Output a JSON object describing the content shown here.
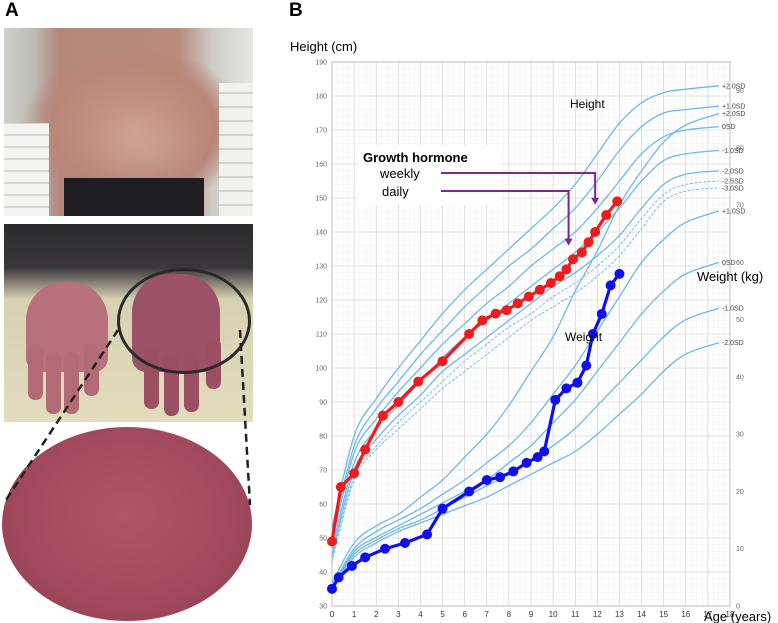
{
  "panel_a": {
    "letter": "A",
    "photos": [
      "abdomen-photo",
      "hands-photo",
      "hand-skin-closeup-photo"
    ]
  },
  "panel_b": {
    "letter": "B"
  },
  "colors": {
    "reference_curve": "#6fb8e6",
    "height_series": "#ee1c1c",
    "weight_series": "#1010ee",
    "gh_arrows": "#7b2a8c",
    "grid": "#d9d9d9"
  },
  "chart_data": {
    "type": "line",
    "x_label": "Age (years)",
    "x_ticks": [
      0,
      1,
      2,
      3,
      4,
      5,
      6,
      7,
      8,
      9,
      10,
      11,
      12,
      13,
      14,
      15,
      16,
      17,
      18
    ],
    "xlim": [
      0,
      18
    ],
    "height_axis": {
      "label": "Height (cm)",
      "ylim": [
        30,
        190
      ],
      "ticks": [
        30,
        40,
        50,
        60,
        70,
        80,
        90,
        100,
        110,
        120,
        130,
        140,
        150,
        160,
        170,
        180,
        190
      ]
    },
    "weight_axis": {
      "label": "Weight (kg)",
      "ylim": [
        0,
        95
      ],
      "ticks": [
        0,
        10,
        20,
        30,
        40,
        50,
        60,
        70,
        80,
        90
      ]
    },
    "height_curve_title": "Height",
    "weight_curve_title": "Weight",
    "height_reference": [
      {
        "name": "+2.0SD",
        "dashed": false,
        "x": [
          0,
          1,
          2,
          3,
          4,
          5,
          6,
          7,
          8,
          9,
          10,
          11,
          12,
          13,
          14,
          15,
          16,
          17.5
        ],
        "y": [
          53,
          80,
          91,
          100,
          108,
          116,
          123,
          129,
          135,
          141,
          147,
          154,
          163,
          172,
          178,
          181,
          182,
          183
        ]
      },
      {
        "name": "+1.0SD",
        "dashed": false,
        "x": [
          0,
          1,
          2,
          3,
          4,
          5,
          6,
          7,
          8,
          9,
          10,
          11,
          12,
          13,
          14,
          15,
          16,
          17.5
        ],
        "y": [
          51,
          77,
          88,
          96,
          104,
          111,
          118,
          124,
          130,
          135,
          141,
          147,
          155,
          164,
          171,
          175,
          176,
          177
        ]
      },
      {
        "name": "0SD",
        "dashed": false,
        "x": [
          0,
          1,
          2,
          3,
          4,
          5,
          6,
          7,
          8,
          9,
          10,
          11,
          12,
          13,
          14,
          15,
          16,
          17.5
        ],
        "y": [
          49,
          75,
          85,
          93,
          100,
          107,
          113,
          119,
          124,
          130,
          135,
          140,
          147,
          155,
          163,
          168,
          170,
          171
        ]
      },
      {
        "name": "-1.0SD",
        "dashed": false,
        "x": [
          0,
          1,
          2,
          3,
          4,
          5,
          6,
          7,
          8,
          9,
          10,
          11,
          12,
          13,
          14,
          15,
          16,
          17.5
        ],
        "y": [
          47,
          72,
          82,
          89,
          96,
          103,
          109,
          114,
          119,
          124,
          129,
          134,
          140,
          147,
          155,
          161,
          163,
          164
        ]
      },
      {
        "name": "-2.0SD",
        "dashed": false,
        "x": [
          0,
          1,
          2,
          3,
          4,
          5,
          6,
          7,
          8,
          9,
          10,
          11,
          12,
          13,
          14,
          15,
          16,
          17.5
        ],
        "y": [
          45,
          70,
          79,
          86,
          92,
          99,
          104,
          109,
          114,
          119,
          124,
          128,
          133,
          139,
          147,
          154,
          157,
          158
        ]
      },
      {
        "name": "-2.5SD",
        "dashed": true,
        "x": [
          0,
          1,
          2,
          3,
          4,
          5,
          6,
          7,
          8,
          9,
          10,
          11,
          12,
          13,
          14,
          15,
          16,
          17.5
        ],
        "y": [
          44,
          68,
          77,
          84,
          90,
          96,
          102,
          107,
          112,
          116,
          121,
          125,
          130,
          136,
          144,
          151,
          154,
          155
        ]
      },
      {
        "name": "-3.0SD",
        "dashed": true,
        "x": [
          0,
          1,
          2,
          3,
          4,
          5,
          6,
          7,
          8,
          9,
          10,
          11,
          12,
          13,
          14,
          15,
          16,
          17.5
        ],
        "y": [
          43,
          67,
          76,
          82,
          88,
          94,
          99,
          104,
          109,
          114,
          118,
          122,
          127,
          133,
          141,
          149,
          152,
          153
        ]
      }
    ],
    "weight_reference": [
      {
        "name": "+2.0SD",
        "x": [
          0,
          1,
          2,
          3,
          4,
          5,
          6,
          7,
          8,
          9,
          10,
          11,
          12,
          13,
          14,
          15,
          16,
          17.5
        ],
        "y": [
          4,
          11,
          14,
          16,
          19,
          22,
          26,
          30,
          35,
          41,
          47,
          55,
          62,
          70,
          76,
          81,
          84,
          86
        ]
      },
      {
        "name": "+1.0SD",
        "x": [
          0,
          1,
          2,
          3,
          4,
          5,
          6,
          7,
          8,
          9,
          10,
          11,
          12,
          13,
          14,
          15,
          16,
          17.5
        ],
        "y": [
          3.5,
          10,
          13,
          15,
          17,
          19.5,
          22,
          25,
          28,
          32,
          37,
          42,
          48,
          54,
          60,
          64,
          67,
          69
        ]
      },
      {
        "name": "0SD",
        "x": [
          0,
          1,
          2,
          3,
          4,
          5,
          6,
          7,
          8,
          9,
          10,
          11,
          12,
          13,
          14,
          15,
          16,
          17.5
        ],
        "y": [
          3,
          9.5,
          12,
          14,
          16,
          18,
          20,
          22,
          25,
          28,
          32,
          36,
          41,
          46,
          51,
          55,
          58,
          60
        ]
      },
      {
        "name": "-1.0SD",
        "x": [
          0,
          1,
          2,
          3,
          4,
          5,
          6,
          7,
          8,
          9,
          10,
          11,
          12,
          13,
          14,
          15,
          16,
          17.5
        ],
        "y": [
          2.9,
          9,
          11.5,
          13.5,
          15,
          17,
          19,
          21,
          23,
          25.5,
          28,
          31,
          35,
          39,
          43,
          47,
          50,
          52
        ]
      },
      {
        "name": "-2.0SD",
        "x": [
          0,
          1,
          2,
          3,
          4,
          5,
          6,
          7,
          8,
          9,
          10,
          11,
          12,
          13,
          14,
          15,
          16,
          17.5
        ],
        "y": [
          2.7,
          8.5,
          11,
          13,
          14.5,
          16,
          17.5,
          19,
          21,
          23,
          25,
          27,
          30,
          33.5,
          37,
          41,
          44,
          46
        ]
      }
    ],
    "patient_height": {
      "name": "Height",
      "x": [
        0,
        0.4,
        1,
        1.5,
        2.3,
        3,
        3.9,
        5,
        6.2,
        6.8,
        7.4,
        7.9,
        8.4,
        8.9,
        9.4,
        9.9,
        10.3,
        10.6,
        10.9,
        11.3,
        11.6,
        11.9,
        12.4,
        12.9
      ],
      "y": [
        49,
        65,
        69,
        76,
        86,
        90,
        96,
        102,
        110,
        114,
        116,
        117,
        119,
        121,
        123,
        125,
        127,
        129,
        132,
        134,
        137,
        140,
        145,
        149
      ]
    },
    "patient_weight": {
      "name": "Weight",
      "x": [
        0,
        0.3,
        0.9,
        1.5,
        2.4,
        3.3,
        4.3,
        5,
        6.2,
        7,
        7.6,
        8.2,
        8.8,
        9.3,
        9.6,
        10.1,
        10.6,
        11.1,
        11.5,
        11.8,
        12.2,
        12.6,
        13
      ],
      "y": [
        3,
        5,
        7,
        8.5,
        10,
        11,
        12.5,
        17,
        20,
        22,
        22.5,
        23.5,
        25,
        26,
        27,
        36,
        38,
        39,
        42,
        47.5,
        51,
        56,
        58
      ]
    },
    "annotation": {
      "title": "Growth hormone",
      "items": [
        {
          "label": "weekly",
          "start_age": 11.9,
          "end_height": 148
        },
        {
          "label": "daily",
          "start_age": 10.7,
          "end_height": 136
        }
      ]
    }
  }
}
